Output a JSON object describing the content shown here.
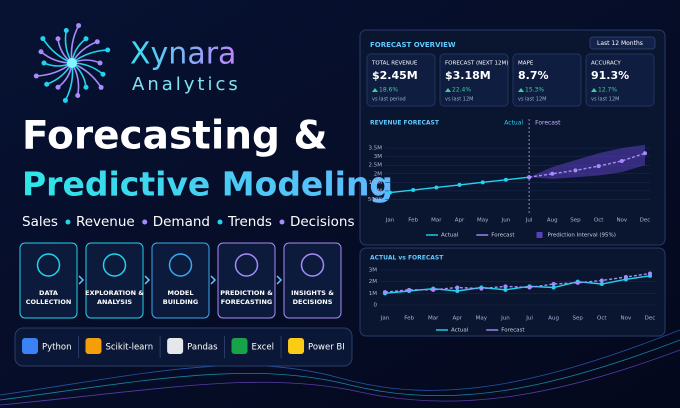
{
  "brand": {
    "name": "Xynara",
    "sub": "Analytics"
  },
  "headline": {
    "line1": "Forecasting &",
    "line2": "Predictive Modeling"
  },
  "tags": [
    "Sales",
    "Revenue",
    "Demand",
    "Trends",
    "Decisions"
  ],
  "steps": [
    "DATA COLLECTION",
    "EXPLORATION & ANALYSIS",
    "MODEL BUILDING",
    "PREDICTION & FORECASTING",
    "INSIGHTS & DECISIONS"
  ],
  "tools": [
    "Python",
    "Scikit-learn",
    "Pandas",
    "Excel",
    "Power BI"
  ],
  "dashboard": {
    "title": "FORECAST OVERVIEW",
    "range": "Last 12 Months",
    "kpis": [
      {
        "label": "TOTAL REVENUE",
        "value": "$2.45M",
        "change": "18.6%",
        "note": "vs last period"
      },
      {
        "label": "FORECAST (NEXT 12M)",
        "value": "$3.18M",
        "change": "22.4%",
        "note": "vs last 12M"
      },
      {
        "label": "MAPE",
        "value": "8.7%",
        "change": "15.3%",
        "note": "vs last 12M"
      },
      {
        "label": "ACCURACY",
        "value": "91.3%",
        "change": "12.7%",
        "note": "vs last 12M"
      }
    ]
  },
  "chart_data": [
    {
      "type": "line",
      "title": "REVENUE FORECAST",
      "markers": [
        "Actual",
        "Forecast"
      ],
      "categories": [
        "Jan",
        "Feb",
        "Mar",
        "Apr",
        "May",
        "Jun",
        "Jul",
        "Aug",
        "Sep",
        "Oct",
        "Nov",
        "Dec"
      ],
      "ylim": [
        0,
        3800000
      ],
      "yticks": [
        {
          "value": 500000,
          "label": "500K"
        },
        {
          "value": 1000000,
          "label": "1M"
        },
        {
          "value": 1500000,
          "label": "1.5M"
        },
        {
          "value": 2000000,
          "label": "2M"
        },
        {
          "value": 2500000,
          "label": "2.5M"
        },
        {
          "value": 3000000,
          "label": "3M"
        },
        {
          "value": 3500000,
          "label": "3.5M"
        }
      ],
      "series": [
        {
          "name": "Actual",
          "color": "#22d3ee",
          "values": [
            900000,
            1050000,
            1200000,
            1350000,
            1500000,
            1650000,
            1800000,
            null,
            null,
            null,
            null,
            null
          ]
        },
        {
          "name": "Forecast",
          "color": "#a78bfa",
          "values": [
            null,
            null,
            null,
            null,
            null,
            null,
            1800000,
            2000000,
            2200000,
            2450000,
            2750000,
            3200000
          ]
        }
      ],
      "interval": {
        "name": "Prediction Interval (95%)",
        "color": "#5b3fc0",
        "lower": [
          null,
          null,
          null,
          null,
          null,
          null,
          1800000,
          1700000,
          1800000,
          1900000,
          2100000,
          2500000
        ],
        "upper": [
          null,
          null,
          null,
          null,
          null,
          null,
          1800000,
          2400000,
          2800000,
          3200000,
          3500000,
          3700000
        ]
      }
    },
    {
      "type": "line",
      "title": "ACTUAL vs FORECAST",
      "categories": [
        "Jan",
        "Feb",
        "Mar",
        "Apr",
        "May",
        "Jun",
        "Jul",
        "Aug",
        "Sep",
        "Oct",
        "Nov",
        "Dec"
      ],
      "ylim": [
        0,
        3000000
      ],
      "yticks": [
        {
          "value": 0,
          "label": "0"
        },
        {
          "value": 1000000,
          "label": "1M"
        },
        {
          "value": 2000000,
          "label": "2M"
        },
        {
          "value": 3000000,
          "label": "3M"
        }
      ],
      "series": [
        {
          "name": "Actual",
          "color": "#22d3ee",
          "values": [
            1000000,
            1200000,
            1400000,
            1200000,
            1500000,
            1300000,
            1600000,
            1500000,
            2000000,
            1800000,
            2200000,
            2500000
          ]
        },
        {
          "name": "Forecast",
          "color": "#a78bfa",
          "values": [
            1100000,
            1300000,
            1300000,
            1500000,
            1400000,
            1600000,
            1500000,
            1800000,
            1900000,
            2100000,
            2400000,
            2700000
          ]
        }
      ]
    }
  ]
}
